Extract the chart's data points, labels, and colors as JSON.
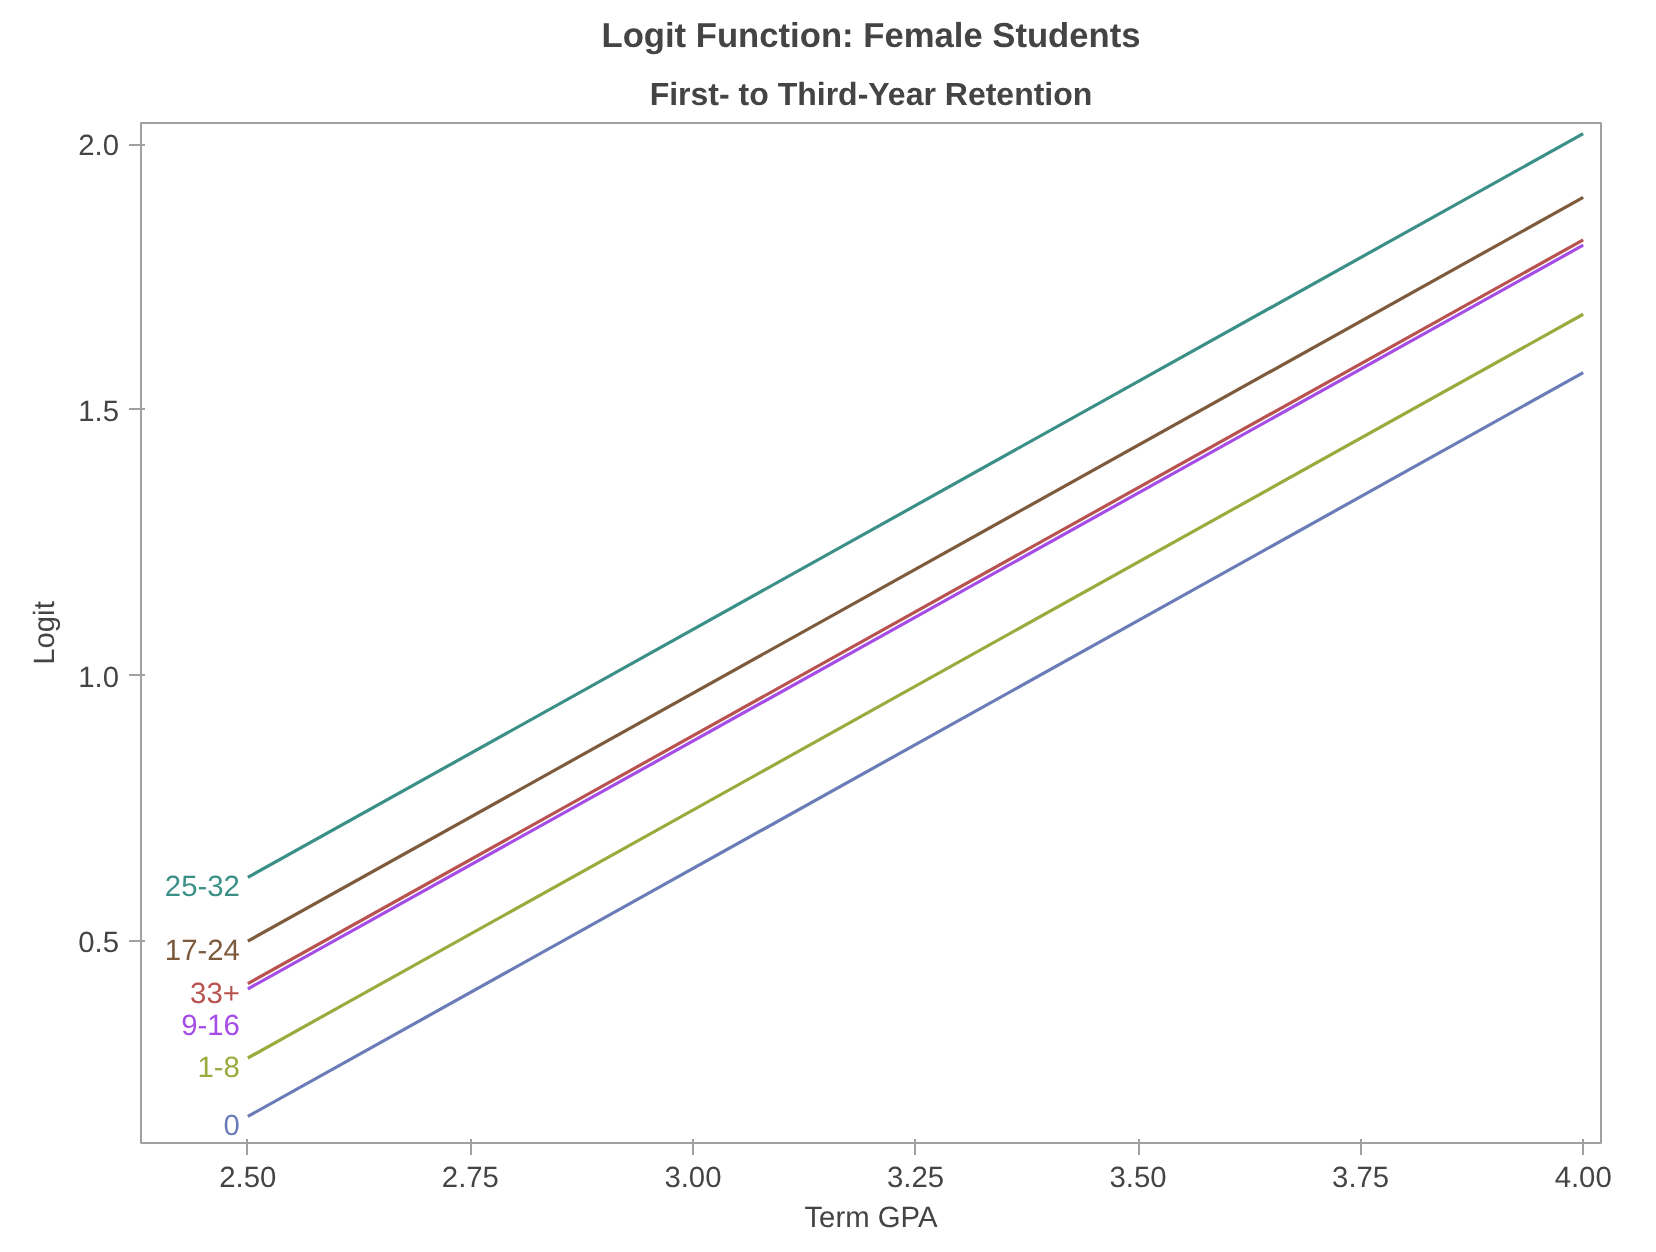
{
  "chart_data": {
    "type": "line",
    "title": "Logit Function: Female Students",
    "subtitle": "First- to Third-Year Retention",
    "xlabel": "Term GPA",
    "ylabel": "Logit",
    "x": [
      2.5,
      4.0
    ],
    "series": [
      {
        "name": "25-32",
        "color": "#3a8f86",
        "values": [
          0.62,
          2.02
        ]
      },
      {
        "name": "17-24",
        "color": "#7d5a3c",
        "values": [
          0.5,
          1.9
        ]
      },
      {
        "name": "33+",
        "color": "#b8524e",
        "values": [
          0.42,
          1.82
        ]
      },
      {
        "name": "9-16",
        "color": "#a64ce6",
        "values": [
          0.41,
          1.81
        ]
      },
      {
        "name": "1-8",
        "color": "#9aab3d",
        "values": [
          0.28,
          1.68
        ]
      },
      {
        "name": "0",
        "color": "#6a7cb8",
        "values": [
          0.17,
          1.57
        ]
      }
    ],
    "xlim": [
      2.38,
      4.02
    ],
    "ylim": [
      0.12,
      2.04
    ],
    "xticks": [
      {
        "value": 2.5,
        "label": "2.50"
      },
      {
        "value": 2.75,
        "label": "2.75"
      },
      {
        "value": 3.0,
        "label": "3.00"
      },
      {
        "value": 3.25,
        "label": "3.25"
      },
      {
        "value": 3.5,
        "label": "3.50"
      },
      {
        "value": 3.75,
        "label": "3.75"
      },
      {
        "value": 4.0,
        "label": "4.00"
      }
    ],
    "yticks": [
      0.5,
      {
        "value": 1.0,
        "label": "1.0"
      },
      1.5,
      {
        "value": 2.0,
        "label": "2.0"
      }
    ],
    "grid": false,
    "legend": false,
    "marker": "none",
    "line_style": "solid"
  }
}
